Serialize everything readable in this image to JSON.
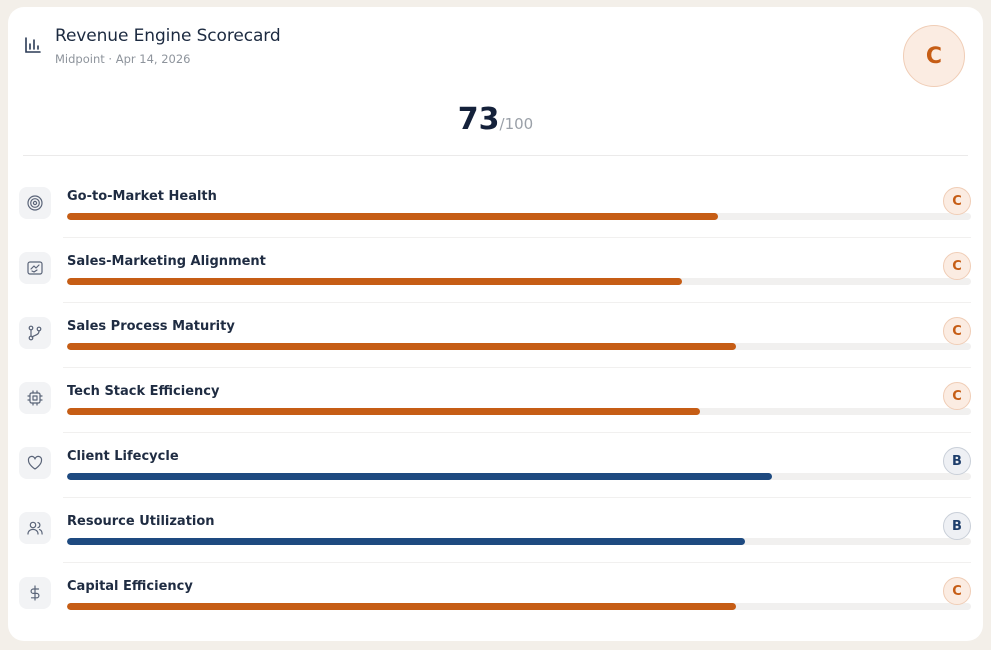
{
  "header": {
    "title": "Revenue Engine Scorecard",
    "subtitle": "Midpoint · Apr 14, 2026",
    "icon": "bar-chart-icon",
    "overall_grade": "C"
  },
  "score": {
    "value": "73",
    "max": "/100"
  },
  "colors": {
    "grade_c": "#c65d15",
    "grade_b": "#1e4a80",
    "track": "#f1f0ef"
  },
  "categories": [
    {
      "label": "Go-to-Market Health",
      "grade": "C",
      "progress": 0.72,
      "icon": "target-icon"
    },
    {
      "label": "Sales-Marketing Alignment",
      "grade": "C",
      "progress": 0.68,
      "icon": "handshake-icon"
    },
    {
      "label": "Sales Process Maturity",
      "grade": "C",
      "progress": 0.74,
      "icon": "git-branch-icon"
    },
    {
      "label": "Tech Stack Efficiency",
      "grade": "C",
      "progress": 0.7,
      "icon": "cpu-icon"
    },
    {
      "label": "Client Lifecycle",
      "grade": "B",
      "progress": 0.78,
      "icon": "heart-icon"
    },
    {
      "label": "Resource Utilization",
      "grade": "B",
      "progress": 0.75,
      "icon": "users-icon"
    },
    {
      "label": "Capital Efficiency",
      "grade": "C",
      "progress": 0.74,
      "icon": "dollar-icon"
    }
  ]
}
